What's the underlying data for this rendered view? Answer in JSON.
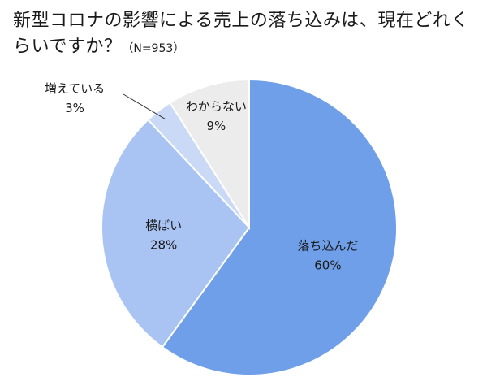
{
  "title": "新型コロナの影響による売上の落ち込みは、現在どれくらいですか？",
  "sample_note": "（N=953）",
  "chart_data": {
    "type": "pie",
    "title": "新型コロナの影響による売上の落ち込みは、現在どれくらいですか？",
    "sample_size": "N=953",
    "categories": [
      "落ち込んだ",
      "横ばい",
      "増えている",
      "わからない"
    ],
    "values": [
      60,
      28,
      3,
      9
    ],
    "value_labels": [
      "60%",
      "28%",
      "3%",
      "9%"
    ],
    "unit": "%",
    "start_angle_deg": 0,
    "direction": "clockwise",
    "colors": [
      "#6e9fe8",
      "#a9c4f2",
      "#c9d9f6",
      "#ececec"
    ],
    "slice_border_color": "#ffffff",
    "legend": "none"
  }
}
